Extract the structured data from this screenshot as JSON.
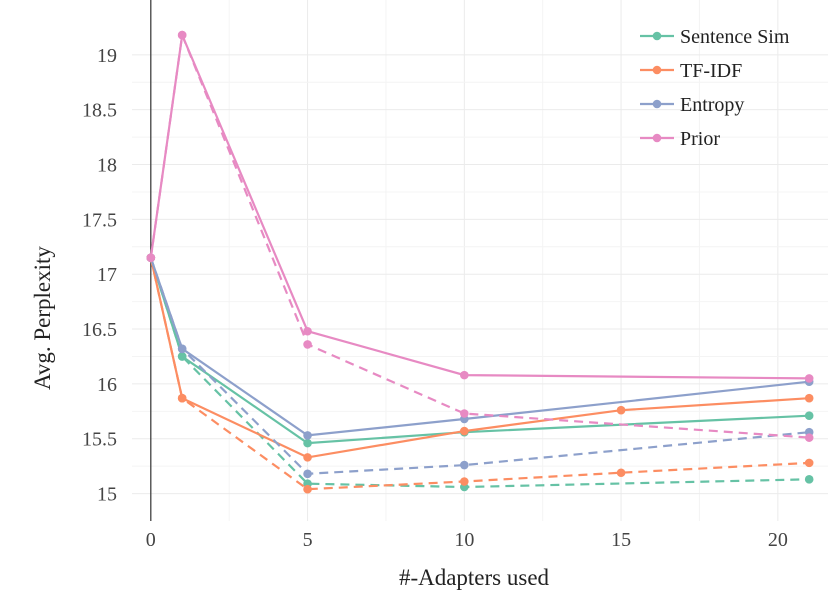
{
  "chart_data": {
    "type": "line",
    "title": "",
    "xlabel": "#-Adapters used",
    "ylabel": "Avg. Perplexity",
    "xlim": [
      -0.6,
      21.6
    ],
    "ylim": [
      14.75,
      19.5
    ],
    "xticks": [
      0,
      5,
      10,
      15,
      20
    ],
    "yticks": [
      15,
      15.5,
      16,
      16.5,
      17,
      17.5,
      18,
      18.5,
      19
    ],
    "ytick_labels": [
      "15",
      "15.5",
      "16",
      "16.5",
      "17",
      "17.5",
      "18",
      "18.5",
      "19"
    ],
    "grid": true,
    "legend_position": "top-right",
    "series": [
      {
        "name": "Sentence Sim",
        "color": "#66c2a5",
        "solid": {
          "x": [
            0,
            1,
            5,
            10,
            21
          ],
          "y": [
            17.15,
            16.25,
            15.46,
            15.56,
            15.71
          ]
        },
        "dashed": {
          "x": [
            0,
            1,
            5,
            10,
            21
          ],
          "y": [
            17.15,
            16.25,
            15.09,
            15.06,
            15.13
          ]
        }
      },
      {
        "name": "TF-IDF",
        "color": "#fc8d62",
        "solid": {
          "x": [
            0,
            1,
            5,
            10,
            15,
            21
          ],
          "y": [
            17.15,
            15.87,
            15.33,
            15.57,
            15.76,
            15.87
          ]
        },
        "dashed": {
          "x": [
            0,
            1,
            5,
            10,
            15,
            21
          ],
          "y": [
            17.15,
            15.87,
            15.04,
            15.11,
            15.19,
            15.28
          ]
        }
      },
      {
        "name": "Entropy",
        "color": "#8da0cb",
        "solid": {
          "x": [
            0,
            1,
            5,
            10,
            21
          ],
          "y": [
            17.15,
            16.32,
            15.53,
            15.68,
            16.02
          ]
        },
        "dashed": {
          "x": [
            0,
            1,
            5,
            10,
            21
          ],
          "y": [
            17.15,
            16.32,
            15.18,
            15.26,
            15.56
          ]
        }
      },
      {
        "name": "Prior",
        "color": "#e78ac3",
        "solid": {
          "x": [
            0,
            1,
            5,
            10,
            21
          ],
          "y": [
            17.15,
            19.18,
            16.48,
            16.08,
            16.05
          ]
        },
        "dashed": {
          "x": [
            0,
            1,
            5,
            10,
            21
          ],
          "y": [
            17.15,
            19.18,
            16.36,
            15.73,
            15.51
          ]
        }
      }
    ]
  }
}
